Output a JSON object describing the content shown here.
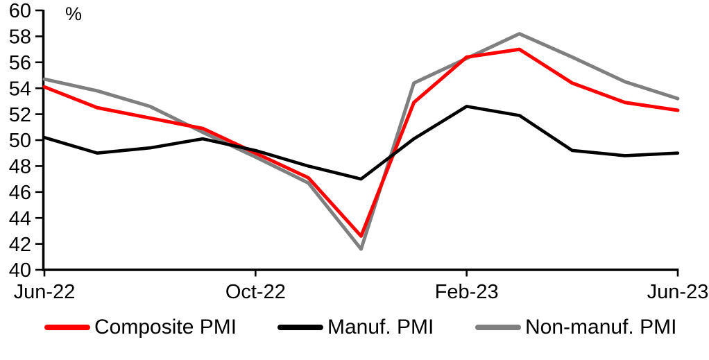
{
  "chart_data": {
    "type": "line",
    "title": "",
    "ylabel": "%",
    "x": [
      "Jun-22",
      "Jul-22",
      "Aug-22",
      "Sep-22",
      "Oct-22",
      "Nov-22",
      "Dec-22",
      "Jan-23",
      "Feb-23",
      "Mar-23",
      "Apr-23",
      "May-23",
      "Jun-23"
    ],
    "x_tick_labels": [
      "Jun-22",
      "Oct-22",
      "Feb-23",
      "Jun-23"
    ],
    "ylim": [
      40,
      60
    ],
    "ytick_step": 2,
    "grid": false,
    "legend_position": "bottom",
    "axis_color": "#000000",
    "series": [
      {
        "name": "Composite PMI",
        "color": "#FF0000",
        "values": [
          54.1,
          52.5,
          51.7,
          50.9,
          49.0,
          47.1,
          42.6,
          52.9,
          56.4,
          57.0,
          54.4,
          52.9,
          52.3
        ]
      },
      {
        "name": "Manuf. PMI",
        "color": "#000000",
        "values": [
          50.2,
          49.0,
          49.4,
          50.1,
          49.2,
          48.0,
          47.0,
          50.1,
          52.6,
          51.9,
          49.2,
          48.8,
          49.0
        ]
      },
      {
        "name": "Non-manuf. PMI",
        "color": "#7F7F7F",
        "values": [
          54.7,
          53.8,
          52.6,
          50.6,
          48.7,
          46.7,
          41.6,
          54.4,
          56.3,
          58.2,
          56.4,
          54.5,
          53.2
        ]
      }
    ]
  }
}
